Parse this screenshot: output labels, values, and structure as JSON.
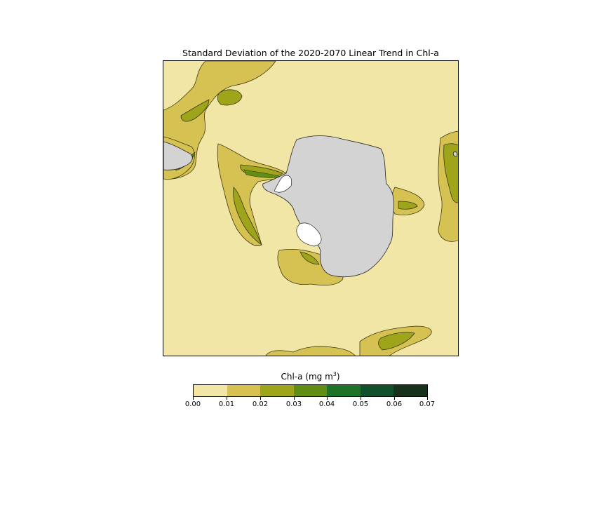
{
  "title": "Standard Deviation of the 2020-2070 Linear Trend in Chl-a",
  "colorbar": {
    "label": "Chl-a (mg m",
    "label_sup": "3",
    "label_close": ")",
    "ticks": [
      "0.00",
      "0.01",
      "0.02",
      "0.03",
      "0.04",
      "0.05",
      "0.06",
      "0.07"
    ],
    "colors": [
      "#f2e6a6",
      "#d6c153",
      "#9fa51a",
      "#618d12",
      "#1f7326",
      "#12502b",
      "#17321c"
    ]
  },
  "map": {
    "projection": "south-polar-stereographic",
    "land_color": "#d3d3d3",
    "ice_shelf_color": "#ffffff",
    "background_level_color": "#f2e6a6"
  }
}
